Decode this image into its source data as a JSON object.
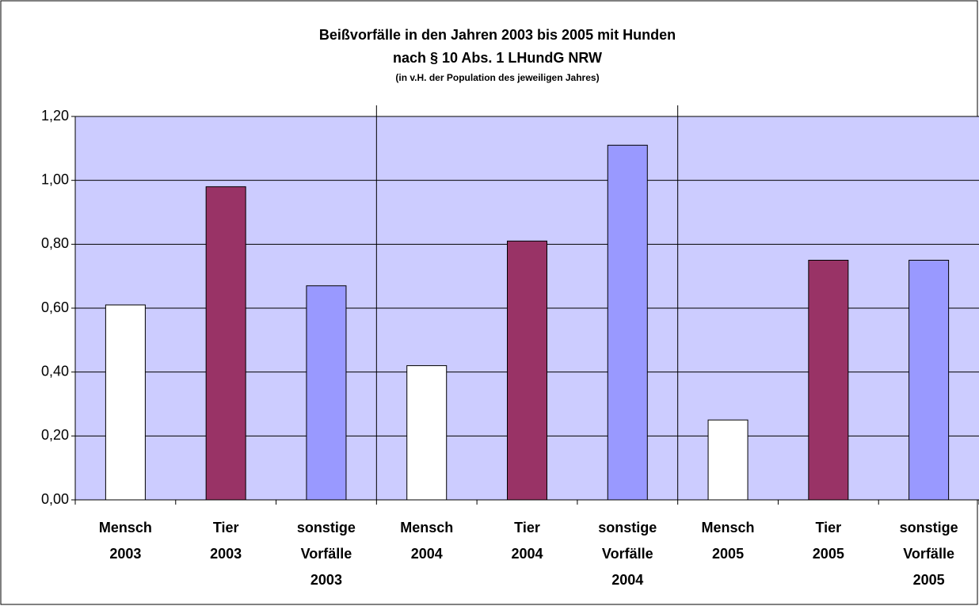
{
  "chart_data": {
    "type": "bar",
    "title": [
      "Beißvorfälle in den Jahren 2003 bis 2005 mit  Hunden",
      "nach § 10 Abs. 1 LHundG NRW"
    ],
    "subtitle": "(in v.H. der Population des jeweiligen Jahres)",
    "categories": [
      [
        "Mensch",
        "2003"
      ],
      [
        "Tier",
        "2003"
      ],
      [
        "sonstige",
        "Vorfälle",
        "2003"
      ],
      [
        "Mensch",
        "2004"
      ],
      [
        "Tier",
        "2004"
      ],
      [
        "sonstige",
        "Vorfälle",
        "2004"
      ],
      [
        "Mensch",
        "2005"
      ],
      [
        "Tier",
        "2005"
      ],
      [
        "sonstige",
        "Vorfälle",
        "2005"
      ]
    ],
    "values": [
      0.61,
      0.98,
      0.67,
      0.42,
      0.81,
      1.11,
      0.25,
      0.75,
      0.75
    ],
    "colors": [
      "#ffffff",
      "#993366",
      "#9999ff",
      "#ffffff",
      "#993366",
      "#9999ff",
      "#ffffff",
      "#993366",
      "#9999ff"
    ],
    "ylim": [
      0,
      1.2
    ],
    "yticks": [
      {
        "value": 0,
        "label": "0,00"
      },
      {
        "value": 0.2,
        "label": "0,20"
      },
      {
        "value": 0.4,
        "label": "0,40"
      },
      {
        "value": 0.6,
        "label": "0,60"
      },
      {
        "value": 0.8,
        "label": "0,80"
      },
      {
        "value": 1.0,
        "label": "1,00"
      },
      {
        "value": 1.2,
        "label": "1,20"
      }
    ],
    "grid": true,
    "plot_background": "#ccccff"
  }
}
